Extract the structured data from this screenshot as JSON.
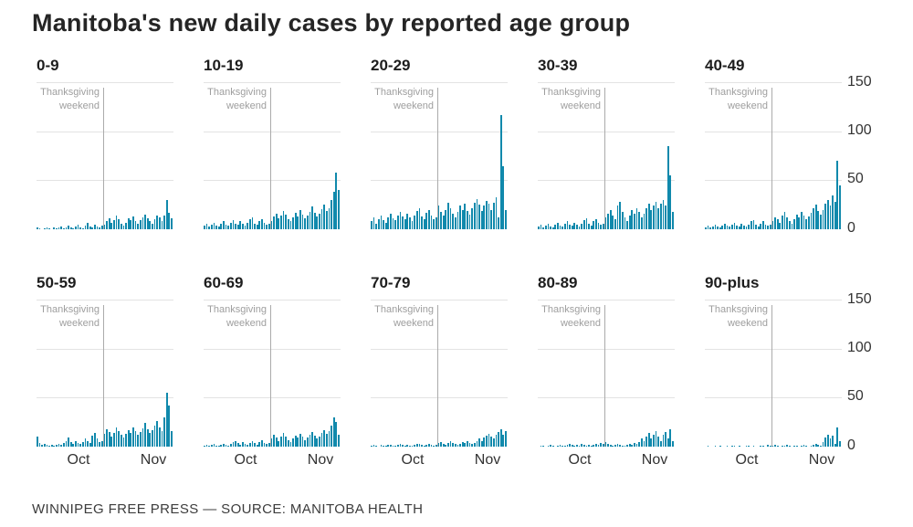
{
  "header": {
    "title": "Manitoba's new daily cases by reported age group"
  },
  "footer": {
    "credit": "WINNIPEG FREE PRESS — SOURCE: MANITOBA HEALTH"
  },
  "annotation": {
    "line1": "Thanksgiving",
    "line2": "weekend"
  },
  "axes": {
    "y_ticks": [
      "150",
      "100",
      "50",
      "0"
    ],
    "x_ticks": [
      "Oct",
      "Nov"
    ],
    "y_max": 150
  },
  "colors": {
    "bar": "#1089ac",
    "gridline": "#e3e3e3",
    "event_line": "#ababab",
    "muted_text": "#9e9e9e",
    "dark_text": "#252525"
  },
  "chart_data": {
    "type": "bar",
    "title": "Manitoba's new daily cases by reported age group",
    "layout": "10 small-multiple daily bar panels, 5 columns x 2 rows, shared y-axis 0-150 labeled at right, gridlines at 50/100/150, x ticks Oct and Nov on bottom row only",
    "ylim": [
      0,
      150
    ],
    "event_line": {
      "label": "Thanksgiving weekend",
      "bar_index": 28
    },
    "panels": [
      {
        "label": "0-9",
        "values": [
          2,
          1,
          0,
          1,
          2,
          1,
          0,
          2,
          1,
          2,
          3,
          1,
          2,
          4,
          2,
          1,
          3,
          5,
          2,
          1,
          4,
          7,
          3,
          2,
          5,
          3,
          2,
          4,
          5,
          8,
          11,
          7,
          9,
          14,
          10,
          6,
          4,
          7,
          11,
          9,
          13,
          8,
          6,
          9,
          12,
          15,
          11,
          8,
          6,
          10,
          14,
          12,
          8,
          14,
          30,
          17,
          11
        ]
      },
      {
        "label": "10-19",
        "values": [
          4,
          6,
          3,
          5,
          7,
          4,
          3,
          6,
          8,
          5,
          4,
          7,
          9,
          6,
          5,
          8,
          6,
          4,
          7,
          10,
          12,
          6,
          5,
          8,
          10,
          7,
          5,
          6,
          8,
          13,
          16,
          11,
          14,
          19,
          15,
          10,
          8,
          12,
          17,
          13,
          20,
          15,
          11,
          14,
          18,
          23,
          17,
          13,
          16,
          21,
          25,
          19,
          22,
          30,
          38,
          58,
          40
        ]
      },
      {
        "label": "20-29",
        "values": [
          8,
          12,
          6,
          10,
          14,
          9,
          7,
          12,
          16,
          11,
          9,
          14,
          18,
          13,
          10,
          16,
          12,
          8,
          14,
          19,
          22,
          13,
          10,
          17,
          20,
          14,
          10,
          12,
          24,
          18,
          14,
          20,
          27,
          22,
          16,
          12,
          18,
          24,
          20,
          26,
          19,
          15,
          22,
          27,
          31,
          25,
          19,
          24,
          29,
          26,
          20,
          27,
          33,
          12,
          117,
          65,
          20
        ]
      },
      {
        "label": "30-39",
        "values": [
          3,
          5,
          2,
          4,
          6,
          3,
          2,
          5,
          7,
          4,
          3,
          6,
          8,
          5,
          4,
          7,
          5,
          3,
          6,
          9,
          11,
          6,
          4,
          8,
          10,
          7,
          5,
          6,
          12,
          16,
          20,
          14,
          10,
          24,
          28,
          18,
          12,
          8,
          14,
          20,
          16,
          22,
          18,
          12,
          16,
          22,
          26,
          20,
          24,
          28,
          22,
          26,
          30,
          24,
          85,
          55,
          18
        ]
      },
      {
        "label": "40-49",
        "values": [
          2,
          4,
          2,
          3,
          5,
          3,
          2,
          4,
          6,
          4,
          3,
          5,
          7,
          4,
          3,
          6,
          4,
          3,
          5,
          8,
          9,
          5,
          3,
          6,
          8,
          5,
          4,
          5,
          8,
          12,
          10,
          7,
          14,
          18,
          12,
          8,
          6,
          10,
          15,
          12,
          18,
          14,
          10,
          13,
          17,
          22,
          25,
          19,
          15,
          20,
          26,
          30,
          24,
          35,
          28,
          70,
          45
        ]
      },
      {
        "label": "50-59",
        "values": [
          10,
          4,
          2,
          3,
          2,
          1,
          2,
          1,
          2,
          3,
          2,
          4,
          6,
          9,
          5,
          3,
          6,
          4,
          3,
          5,
          8,
          6,
          4,
          11,
          14,
          8,
          5,
          6,
          13,
          18,
          15,
          10,
          14,
          20,
          16,
          12,
          9,
          13,
          17,
          14,
          20,
          16,
          12,
          15,
          19,
          24,
          18,
          14,
          17,
          22,
          26,
          20,
          16,
          30,
          55,
          42,
          16
        ]
      },
      {
        "label": "60-69",
        "values": [
          1,
          2,
          1,
          2,
          3,
          1,
          1,
          2,
          3,
          2,
          1,
          3,
          5,
          6,
          4,
          2,
          5,
          3,
          2,
          4,
          6,
          4,
          2,
          5,
          7,
          4,
          3,
          4,
          8,
          12,
          9,
          6,
          10,
          14,
          10,
          7,
          5,
          8,
          11,
          9,
          13,
          10,
          7,
          9,
          12,
          15,
          11,
          8,
          10,
          14,
          17,
          13,
          16,
          22,
          30,
          25,
          12
        ]
      },
      {
        "label": "70-79",
        "values": [
          1,
          2,
          1,
          0,
          2,
          1,
          1,
          2,
          2,
          1,
          1,
          2,
          3,
          2,
          1,
          2,
          1,
          1,
          2,
          3,
          3,
          2,
          1,
          2,
          3,
          2,
          1,
          2,
          4,
          5,
          3,
          2,
          4,
          6,
          4,
          3,
          2,
          3,
          5,
          4,
          6,
          4,
          3,
          4,
          6,
          8,
          6,
          9,
          11,
          13,
          10,
          8,
          12,
          15,
          18,
          12,
          16
        ]
      },
      {
        "label": "80-89",
        "values": [
          0,
          1,
          1,
          0,
          1,
          2,
          1,
          0,
          1,
          2,
          1,
          1,
          2,
          3,
          2,
          1,
          2,
          1,
          3,
          2,
          1,
          2,
          1,
          2,
          3,
          2,
          4,
          3,
          5,
          3,
          2,
          1,
          2,
          3,
          2,
          1,
          1,
          2,
          3,
          2,
          4,
          3,
          5,
          8,
          6,
          10,
          14,
          8,
          12,
          16,
          10,
          6,
          12,
          15,
          8,
          18,
          6
        ]
      },
      {
        "label": "90-plus",
        "values": [
          0,
          1,
          0,
          0,
          1,
          0,
          1,
          0,
          0,
          1,
          0,
          1,
          1,
          0,
          1,
          0,
          0,
          1,
          1,
          0,
          1,
          0,
          0,
          1,
          1,
          0,
          2,
          1,
          1,
          2,
          1,
          0,
          1,
          1,
          2,
          1,
          0,
          1,
          1,
          0,
          1,
          2,
          1,
          0,
          1,
          2,
          3,
          2,
          1,
          5,
          9,
          12,
          8,
          11,
          3,
          20,
          6
        ]
      }
    ]
  }
}
